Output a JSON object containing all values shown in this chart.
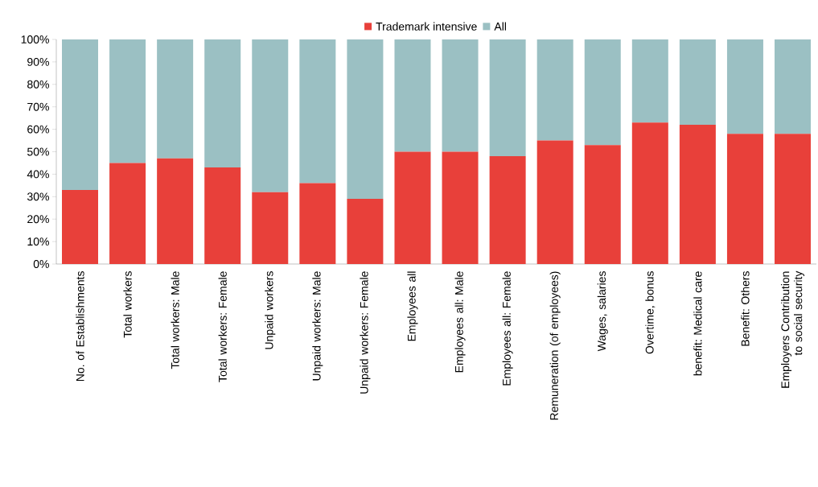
{
  "chart_data": {
    "type": "bar",
    "stacked": true,
    "legend": "top",
    "categories": [
      "No. of Establishments",
      "Total workers",
      "Total workers: Male",
      "Total workers: Female",
      "Unpaid workers",
      "Unpaid workers: Male",
      "Unpaid workers: Female",
      "Employees all",
      "Employees all: Male",
      "Employees all: Female",
      "Remuneration (of employees)",
      "Wages, salaries",
      "Overtime, bonus",
      "benefit: Medical care",
      "Benefit: Others",
      "Employers Contribution to social security"
    ],
    "series": [
      {
        "name": "Trademark intensive",
        "color": "#e8403a",
        "values": [
          33,
          45,
          47,
          43,
          32,
          36,
          29,
          50,
          50,
          48,
          55,
          53,
          63,
          62,
          58,
          58
        ]
      },
      {
        "name": "All",
        "color": "#9bc0c3",
        "values": [
          67,
          55,
          53,
          57,
          68,
          64,
          71,
          50,
          50,
          52,
          45,
          47,
          37,
          38,
          42,
          42
        ]
      }
    ],
    "ylim": [
      0,
      100
    ],
    "yticks": [
      {
        "value": 0,
        "label": "0%"
      },
      {
        "value": 10,
        "label": "10%"
      },
      {
        "value": 20,
        "label": "20%"
      },
      {
        "value": 30,
        "label": "30%"
      },
      {
        "value": 40,
        "label": "40%"
      },
      {
        "value": 50,
        "label": "50%"
      },
      {
        "value": 60,
        "label": "60%"
      },
      {
        "value": 70,
        "label": "70%"
      },
      {
        "value": 80,
        "label": "80%"
      },
      {
        "value": 90,
        "label": "90%"
      },
      {
        "value": 100,
        "label": "100%"
      }
    ]
  }
}
